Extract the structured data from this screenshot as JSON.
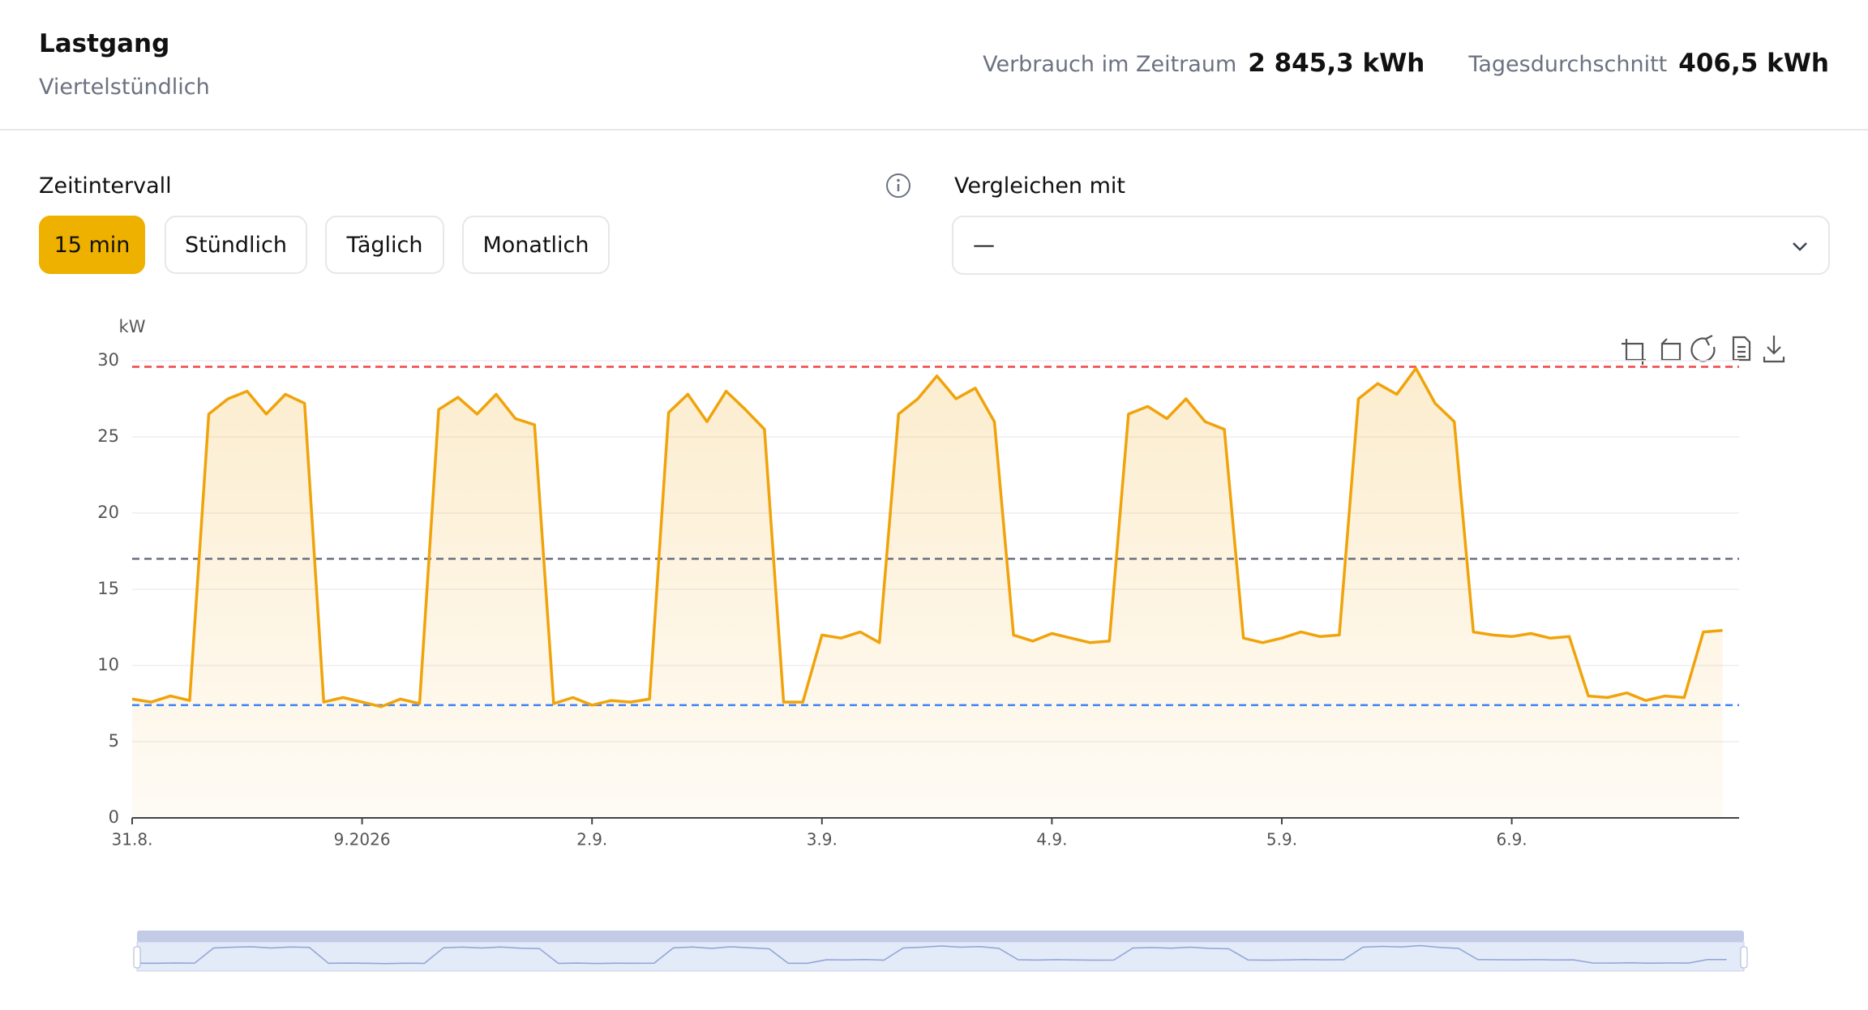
{
  "header": {
    "title": "Lastgang",
    "subtitle": "Viertelstündlich"
  },
  "stats": [
    {
      "label": "Verbrauch im Zeitraum",
      "value": "2 845,3 kWh"
    },
    {
      "label": "Tagesdurchschnitt",
      "value": "406,5 kWh"
    }
  ],
  "controls": {
    "interval_label": "Zeitintervall",
    "buttons": [
      "15 min",
      "Stündlich",
      "Täglich",
      "Monatlich"
    ],
    "active": 0,
    "compare_label": "Vergleichen mit",
    "compare_value": "—"
  },
  "chart_data": {
    "type": "line",
    "y_unit": "kW",
    "categories": [
      "31.8.",
      null,
      null,
      null,
      null,
      null,
      null,
      null,
      null,
      null,
      null,
      null,
      "9.2026",
      null,
      null,
      null,
      null,
      null,
      null,
      null,
      null,
      null,
      null,
      null,
      "2.9.",
      null,
      null,
      null,
      null,
      null,
      null,
      null,
      null,
      null,
      null,
      null,
      "3.9.",
      null,
      null,
      null,
      null,
      null,
      null,
      null,
      null,
      null,
      null,
      null,
      "4.9.",
      null,
      null,
      null,
      null,
      null,
      null,
      null,
      null,
      null,
      null,
      null,
      "5.9.",
      null,
      null,
      null,
      null,
      null,
      null,
      null,
      null,
      null,
      null,
      null,
      "6.9.",
      null,
      null,
      null,
      null,
      null,
      null,
      null,
      null,
      null,
      null,
      null
    ],
    "values": [
      7.8,
      7.6,
      8.0,
      7.7,
      26.5,
      27.5,
      28.0,
      26.5,
      27.8,
      27.2,
      7.6,
      7.9,
      7.6,
      7.3,
      7.8,
      7.5,
      26.8,
      27.6,
      26.5,
      27.8,
      26.2,
      25.8,
      7.5,
      7.9,
      7.4,
      7.7,
      7.6,
      7.8,
      26.6,
      27.8,
      26.0,
      28.0,
      26.8,
      25.5,
      7.6,
      7.6,
      12.0,
      11.8,
      12.2,
      11.5,
      26.5,
      27.5,
      29.0,
      27.5,
      28.2,
      26.0,
      12.0,
      11.6,
      12.1,
      11.8,
      11.5,
      11.6,
      26.5,
      27.0,
      26.2,
      27.5,
      26.0,
      25.5,
      11.8,
      11.5,
      11.8,
      12.2,
      11.9,
      12.0,
      27.5,
      28.5,
      27.8,
      29.5,
      27.2,
      26.0,
      12.2,
      12.0,
      11.9,
      12.1,
      11.8,
      11.9,
      8.0,
      7.9,
      8.2,
      7.7,
      8.0,
      7.9,
      12.2,
      12.3
    ],
    "color": "#f0a30a",
    "ylim": [
      0,
      30
    ],
    "yticks": [
      0,
      5,
      10,
      15,
      20,
      25,
      30
    ],
    "grid": true,
    "reference_lines": [
      {
        "value": 29.6,
        "color": "#ef4444"
      },
      {
        "value": 17,
        "color": "#6b7280"
      },
      {
        "value": 7.4,
        "color": "#3b82f6"
      }
    ]
  }
}
